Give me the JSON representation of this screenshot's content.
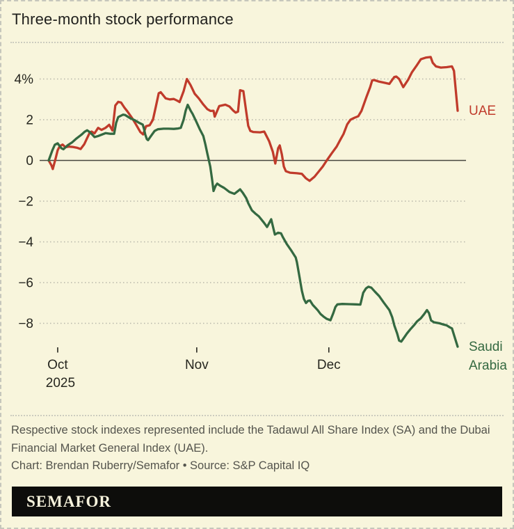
{
  "title": "Three-month stock performance",
  "colors": {
    "background": "#f8f5dc",
    "uae": "#c03b2b",
    "saudi": "#346941",
    "grid": "#b7b7aa",
    "zero_line": "#45453e",
    "axis_text": "#26261f",
    "muted_text": "#54544d",
    "brand_bar_bg": "#0d0d0b",
    "brand_text": "#f7f3dc",
    "border": "#c6c6bc"
  },
  "footer": {
    "note": "Respective stock indexes represented include the Tadawul All Share Index (SA) and the Dubai Financial Market General Index (UAE).",
    "credit": "Chart: Brendan Ruberry/Semafor • Source: S&P Capital IQ",
    "brand": "SEMAFOR"
  },
  "chart_data": {
    "type": "line",
    "title": "Three-month stock performance",
    "y_unit": "%",
    "ylim": [
      -9.6,
      5.6
    ],
    "grid": "dotted horizontal gridlines, solid zero line",
    "legend_position": "line-end labels, right side",
    "x_note": "x is fraction of the three-month span, approx Sep 30 2025 (0) to Dec 30 2025 (1)",
    "y_ticks": [
      {
        "v": 4,
        "label": "4%"
      },
      {
        "v": 2,
        "label": "2"
      },
      {
        "v": 0,
        "label": "0"
      },
      {
        "v": -2,
        "label": "−2"
      },
      {
        "v": -4,
        "label": "−4"
      },
      {
        "v": -6,
        "label": "−6"
      },
      {
        "v": -8,
        "label": "−8"
      }
    ],
    "x_ticks": [
      {
        "pos": 0.022,
        "label": "Oct",
        "sublabel": "2025"
      },
      {
        "pos": 0.362,
        "label": "Nov",
        "sublabel": ""
      },
      {
        "pos": 0.685,
        "label": "Dec",
        "sublabel": ""
      }
    ],
    "series": [
      {
        "name": "UAE",
        "color": "#c03b2b",
        "label_lines": [
          "UAE"
        ],
        "points": [
          [
            0.0,
            0.0
          ],
          [
            0.007,
            -0.25
          ],
          [
            0.01,
            -0.42
          ],
          [
            0.017,
            0.1
          ],
          [
            0.022,
            0.5
          ],
          [
            0.027,
            0.7
          ],
          [
            0.034,
            0.78
          ],
          [
            0.041,
            0.65
          ],
          [
            0.049,
            0.68
          ],
          [
            0.06,
            0.66
          ],
          [
            0.07,
            0.62
          ],
          [
            0.078,
            0.56
          ],
          [
            0.087,
            0.8
          ],
          [
            0.094,
            1.1
          ],
          [
            0.1,
            1.35
          ],
          [
            0.105,
            1.42
          ],
          [
            0.112,
            1.33
          ],
          [
            0.121,
            1.6
          ],
          [
            0.129,
            1.5
          ],
          [
            0.139,
            1.6
          ],
          [
            0.148,
            1.75
          ],
          [
            0.156,
            1.47
          ],
          [
            0.163,
            2.7
          ],
          [
            0.17,
            2.88
          ],
          [
            0.177,
            2.84
          ],
          [
            0.185,
            2.6
          ],
          [
            0.192,
            2.42
          ],
          [
            0.204,
            2.08
          ],
          [
            0.214,
            1.75
          ],
          [
            0.224,
            1.4
          ],
          [
            0.231,
            1.28
          ],
          [
            0.238,
            1.68
          ],
          [
            0.247,
            1.73
          ],
          [
            0.255,
            2.0
          ],
          [
            0.262,
            2.65
          ],
          [
            0.269,
            3.3
          ],
          [
            0.274,
            3.35
          ],
          [
            0.286,
            3.05
          ],
          [
            0.296,
            3.0
          ],
          [
            0.306,
            3.02
          ],
          [
            0.315,
            2.93
          ],
          [
            0.32,
            2.87
          ],
          [
            0.33,
            3.4
          ],
          [
            0.338,
            4.0
          ],
          [
            0.347,
            3.7
          ],
          [
            0.357,
            3.28
          ],
          [
            0.367,
            3.05
          ],
          [
            0.378,
            2.75
          ],
          [
            0.388,
            2.52
          ],
          [
            0.396,
            2.43
          ],
          [
            0.403,
            2.44
          ],
          [
            0.406,
            2.15
          ],
          [
            0.417,
            2.67
          ],
          [
            0.432,
            2.74
          ],
          [
            0.442,
            2.65
          ],
          [
            0.451,
            2.45
          ],
          [
            0.457,
            2.35
          ],
          [
            0.463,
            2.4
          ],
          [
            0.468,
            3.45
          ],
          [
            0.476,
            3.4
          ],
          [
            0.483,
            2.4
          ],
          [
            0.488,
            1.7
          ],
          [
            0.493,
            1.45
          ],
          [
            0.5,
            1.4
          ],
          [
            0.517,
            1.38
          ],
          [
            0.527,
            1.42
          ],
          [
            0.539,
            0.95
          ],
          [
            0.548,
            0.43
          ],
          [
            0.554,
            -0.15
          ],
          [
            0.561,
            0.6
          ],
          [
            0.565,
            0.74
          ],
          [
            0.57,
            0.3
          ],
          [
            0.575,
            -0.3
          ],
          [
            0.58,
            -0.53
          ],
          [
            0.59,
            -0.6
          ],
          [
            0.607,
            -0.63
          ],
          [
            0.619,
            -0.66
          ],
          [
            0.629,
            -0.88
          ],
          [
            0.638,
            -1.0
          ],
          [
            0.65,
            -0.8
          ],
          [
            0.66,
            -0.55
          ],
          [
            0.67,
            -0.3
          ],
          [
            0.68,
            0.0
          ],
          [
            0.692,
            0.35
          ],
          [
            0.704,
            0.68
          ],
          [
            0.714,
            1.05
          ],
          [
            0.721,
            1.3
          ],
          [
            0.73,
            1.77
          ],
          [
            0.738,
            2.0
          ],
          [
            0.748,
            2.1
          ],
          [
            0.757,
            2.17
          ],
          [
            0.765,
            2.44
          ],
          [
            0.777,
            3.12
          ],
          [
            0.786,
            3.6
          ],
          [
            0.791,
            3.93
          ],
          [
            0.796,
            3.95
          ],
          [
            0.808,
            3.87
          ],
          [
            0.823,
            3.81
          ],
          [
            0.833,
            3.76
          ],
          [
            0.845,
            4.1
          ],
          [
            0.85,
            4.12
          ],
          [
            0.857,
            4.0
          ],
          [
            0.867,
            3.6
          ],
          [
            0.879,
            3.97
          ],
          [
            0.888,
            4.32
          ],
          [
            0.9,
            4.67
          ],
          [
            0.91,
            4.97
          ],
          [
            0.922,
            5.05
          ],
          [
            0.934,
            5.08
          ],
          [
            0.939,
            4.8
          ],
          [
            0.947,
            4.62
          ],
          [
            0.959,
            4.56
          ],
          [
            0.973,
            4.58
          ],
          [
            0.986,
            4.62
          ],
          [
            0.991,
            4.4
          ],
          [
            1.0,
            2.44
          ]
        ]
      },
      {
        "name": "Saudi Arabia",
        "color": "#346941",
        "label_lines": [
          "Saudi",
          "Arabia"
        ],
        "points": [
          [
            0.0,
            0.0
          ],
          [
            0.009,
            0.5
          ],
          [
            0.015,
            0.77
          ],
          [
            0.022,
            0.84
          ],
          [
            0.031,
            0.6
          ],
          [
            0.036,
            0.55
          ],
          [
            0.046,
            0.74
          ],
          [
            0.058,
            0.9
          ],
          [
            0.068,
            1.08
          ],
          [
            0.08,
            1.26
          ],
          [
            0.088,
            1.41
          ],
          [
            0.094,
            1.48
          ],
          [
            0.1,
            1.4
          ],
          [
            0.107,
            1.26
          ],
          [
            0.112,
            1.15
          ],
          [
            0.121,
            1.2
          ],
          [
            0.129,
            1.26
          ],
          [
            0.139,
            1.34
          ],
          [
            0.151,
            1.31
          ],
          [
            0.16,
            1.31
          ],
          [
            0.165,
            1.85
          ],
          [
            0.17,
            2.13
          ],
          [
            0.182,
            2.25
          ],
          [
            0.187,
            2.23
          ],
          [
            0.199,
            2.08
          ],
          [
            0.211,
            1.97
          ],
          [
            0.221,
            1.85
          ],
          [
            0.23,
            1.76
          ],
          [
            0.233,
            1.56
          ],
          [
            0.236,
            1.28
          ],
          [
            0.24,
            1.05
          ],
          [
            0.243,
            1.0
          ],
          [
            0.25,
            1.2
          ],
          [
            0.259,
            1.45
          ],
          [
            0.267,
            1.53
          ],
          [
            0.281,
            1.56
          ],
          [
            0.293,
            1.56
          ],
          [
            0.306,
            1.55
          ],
          [
            0.316,
            1.57
          ],
          [
            0.323,
            1.6
          ],
          [
            0.33,
            2.0
          ],
          [
            0.335,
            2.45
          ],
          [
            0.34,
            2.73
          ],
          [
            0.347,
            2.45
          ],
          [
            0.352,
            2.28
          ],
          [
            0.361,
            1.9
          ],
          [
            0.369,
            1.55
          ],
          [
            0.378,
            1.2
          ],
          [
            0.383,
            0.8
          ],
          [
            0.388,
            0.34
          ],
          [
            0.395,
            -0.3
          ],
          [
            0.4,
            -1.0
          ],
          [
            0.403,
            -1.5
          ],
          [
            0.408,
            -1.25
          ],
          [
            0.412,
            -1.14
          ],
          [
            0.42,
            -1.25
          ],
          [
            0.429,
            -1.35
          ],
          [
            0.442,
            -1.55
          ],
          [
            0.454,
            -1.64
          ],
          [
            0.463,
            -1.5
          ],
          [
            0.468,
            -1.42
          ],
          [
            0.475,
            -1.6
          ],
          [
            0.483,
            -1.85
          ],
          [
            0.488,
            -2.1
          ],
          [
            0.497,
            -2.45
          ],
          [
            0.505,
            -2.6
          ],
          [
            0.514,
            -2.75
          ],
          [
            0.526,
            -3.05
          ],
          [
            0.534,
            -3.27
          ],
          [
            0.544,
            -2.89
          ],
          [
            0.553,
            -3.64
          ],
          [
            0.561,
            -3.55
          ],
          [
            0.568,
            -3.58
          ],
          [
            0.573,
            -3.78
          ],
          [
            0.582,
            -4.1
          ],
          [
            0.594,
            -4.45
          ],
          [
            0.604,
            -4.77
          ],
          [
            0.607,
            -5.0
          ],
          [
            0.614,
            -5.8
          ],
          [
            0.619,
            -6.4
          ],
          [
            0.624,
            -6.8
          ],
          [
            0.629,
            -7.0
          ],
          [
            0.634,
            -6.9
          ],
          [
            0.639,
            -6.88
          ],
          [
            0.646,
            -7.1
          ],
          [
            0.653,
            -7.25
          ],
          [
            0.658,
            -7.36
          ],
          [
            0.665,
            -7.55
          ],
          [
            0.672,
            -7.67
          ],
          [
            0.68,
            -7.78
          ],
          [
            0.689,
            -7.85
          ],
          [
            0.696,
            -7.5
          ],
          [
            0.701,
            -7.2
          ],
          [
            0.706,
            -7.07
          ],
          [
            0.718,
            -7.05
          ],
          [
            0.735,
            -7.06
          ],
          [
            0.752,
            -7.07
          ],
          [
            0.762,
            -7.08
          ],
          [
            0.769,
            -6.5
          ],
          [
            0.776,
            -6.28
          ],
          [
            0.782,
            -6.2
          ],
          [
            0.789,
            -6.25
          ],
          [
            0.798,
            -6.45
          ],
          [
            0.808,
            -6.66
          ],
          [
            0.82,
            -7.0
          ],
          [
            0.833,
            -7.35
          ],
          [
            0.84,
            -7.7
          ],
          [
            0.845,
            -8.1
          ],
          [
            0.852,
            -8.5
          ],
          [
            0.857,
            -8.85
          ],
          [
            0.862,
            -8.9
          ],
          [
            0.869,
            -8.7
          ],
          [
            0.876,
            -8.5
          ],
          [
            0.884,
            -8.3
          ],
          [
            0.893,
            -8.1
          ],
          [
            0.901,
            -7.9
          ],
          [
            0.91,
            -7.75
          ],
          [
            0.918,
            -7.55
          ],
          [
            0.925,
            -7.35
          ],
          [
            0.93,
            -7.5
          ],
          [
            0.935,
            -7.86
          ],
          [
            0.942,
            -7.95
          ],
          [
            0.956,
            -8.0
          ],
          [
            0.964,
            -8.05
          ],
          [
            0.973,
            -8.1
          ],
          [
            0.981,
            -8.2
          ],
          [
            0.986,
            -8.25
          ],
          [
            0.993,
            -8.7
          ],
          [
            1.0,
            -9.15
          ]
        ]
      }
    ]
  }
}
